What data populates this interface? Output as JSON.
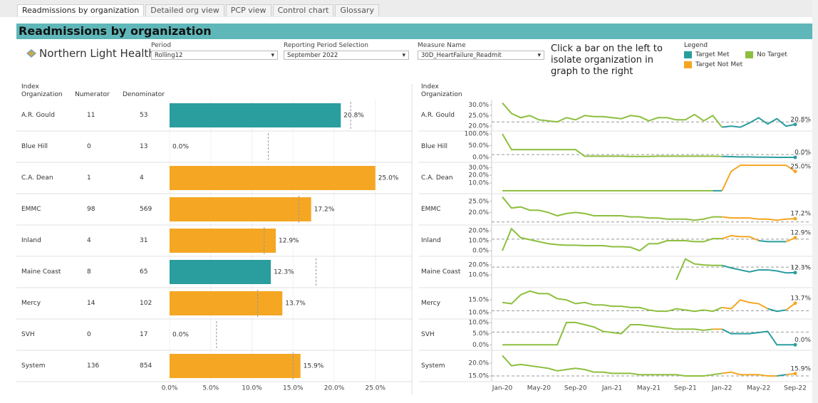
{
  "tabs": [
    "Readmissions by organization",
    "Detailed org view",
    "PCP view",
    "Control chart",
    "Glossary"
  ],
  "header": {
    "title": "Readmissions by organization"
  },
  "logo": "Northern Light Health.",
  "filters": [
    {
      "label": "Period",
      "value": "Rolling12"
    },
    {
      "label": "Reporting Period Selection",
      "value": "September 2022"
    },
    {
      "label": "Measure Name",
      "value": "30D_HeartFailure_Readmit"
    }
  ],
  "instruction": "Click a bar on the left to isolate organization in graph to the right",
  "legend": {
    "title": "Legend",
    "items": [
      {
        "label": "Target Met",
        "color": "#2a9d9f"
      },
      {
        "label": "No Target",
        "color": "#8dbf3f"
      },
      {
        "label": "Target Not Met",
        "color": "#f5a623"
      }
    ]
  },
  "table": {
    "columns": [
      "Index Organization",
      "Numerator",
      "Denominator"
    ]
  },
  "chart_data": [
    {
      "type": "bar",
      "orientation": "horizontal",
      "categories": [
        "A.R. Gould",
        "Blue Hill",
        "C.A. Dean",
        "EMMC",
        "Inland",
        "Maine Coast",
        "Mercy",
        "SVH",
        "System"
      ],
      "numerator": [
        11,
        0,
        1,
        98,
        4,
        8,
        14,
        0,
        136
      ],
      "denominator": [
        53,
        13,
        4,
        569,
        31,
        65,
        102,
        17,
        854
      ],
      "values": [
        20.8,
        0,
        25,
        17.2,
        12.9,
        12.3,
        13.7,
        0,
        15.9
      ],
      "value_labels": [
        "20.8%",
        "0.0%",
        "25.0%",
        "17.2%",
        "12.9%",
        "12.3%",
        "13.7%",
        "0.0%",
        "15.9%"
      ],
      "colors": [
        "#2a9d9f",
        "#2a9d9f",
        "#f5a623",
        "#f5a623",
        "#f5a623",
        "#2a9d9f",
        "#f5a623",
        "#2a9d9f",
        "#f5a623"
      ],
      "targets": [
        22.0,
        12.0,
        null,
        15.7,
        11.5,
        17.8,
        10.7,
        5.7,
        15.0
      ],
      "xlim": [
        0,
        29
      ],
      "xticks": [
        {
          "value": 0,
          "label": "0.0%"
        },
        {
          "value": 5,
          "label": "5.0%"
        },
        {
          "value": 10,
          "label": "10.0%"
        },
        {
          "value": 15,
          "label": "15.0%"
        },
        {
          "value": 20,
          "label": "20.0%"
        },
        {
          "value": 25,
          "label": "25.0%"
        }
      ],
      "grid": true
    },
    {
      "type": "line",
      "xlim": [
        0,
        32
      ],
      "xticks": [
        {
          "value": 0,
          "label": "Jan-20"
        },
        {
          "value": 4,
          "label": "May-20"
        },
        {
          "value": 8,
          "label": "Sep-20"
        },
        {
          "value": 12,
          "label": "Jan-21"
        },
        {
          "value": 16,
          "label": "May-21"
        },
        {
          "value": 20,
          "label": "Sep-21"
        },
        {
          "value": 24,
          "label": "Jan-22"
        },
        {
          "value": 28,
          "label": "May-22"
        },
        {
          "value": 32,
          "label": "Sep-22"
        }
      ],
      "panels": [
        {
          "ylim": [
            18.7,
            31.5
          ],
          "yticks": [
            {
              "value": 20,
              "label": "20.0%"
            },
            {
              "value": 25,
              "label": "25.0%"
            },
            {
              "value": 30,
              "label": "30.0%"
            }
          ],
          "values": [
            31,
            26,
            24,
            25,
            23,
            22.5,
            22,
            24,
            23,
            25,
            24.5,
            24.5,
            24,
            23.5,
            25,
            24.5,
            22.5,
            24,
            24,
            23,
            23,
            25.5,
            22.5,
            25,
            19.5,
            20,
            19.5,
            21.5,
            24,
            21,
            23.5,
            20,
            20.8
          ],
          "point_colors": [
            "#8dbf3f",
            "#8dbf3f",
            "#8dbf3f",
            "#8dbf3f",
            "#8dbf3f",
            "#8dbf3f",
            "#8dbf3f",
            "#8dbf3f",
            "#8dbf3f",
            "#8dbf3f",
            "#8dbf3f",
            "#8dbf3f",
            "#8dbf3f",
            "#8dbf3f",
            "#8dbf3f",
            "#8dbf3f",
            "#8dbf3f",
            "#8dbf3f",
            "#8dbf3f",
            "#8dbf3f",
            "#8dbf3f",
            "#8dbf3f",
            "#8dbf3f",
            "#8dbf3f",
            "#8dbf3f",
            "#2a9d9f",
            "#2a9d9f",
            "#2a9d9f",
            "#2a9d9f",
            "#2a9d9f",
            "#2a9d9f",
            "#2a9d9f",
            "#2a9d9f"
          ]
        },
        {
          "ylim": [
            -12,
            103
          ],
          "yticks": [
            {
              "value": 0,
              "label": "0.0%"
            },
            {
              "value": 50,
              "label": "50.0%"
            },
            {
              "value": 100,
              "label": "100.0%"
            }
          ],
          "values": [
            100,
            33,
            33,
            33,
            33,
            33,
            33,
            33,
            33,
            5,
            5,
            5,
            5,
            5,
            4,
            4,
            4,
            5,
            5,
            5,
            5,
            5,
            5,
            5,
            4,
            3,
            2,
            2,
            1,
            1,
            0,
            0,
            0
          ],
          "point_colors": [
            "#8dbf3f",
            "#8dbf3f",
            "#8dbf3f",
            "#8dbf3f",
            "#8dbf3f",
            "#8dbf3f",
            "#8dbf3f",
            "#8dbf3f",
            "#8dbf3f",
            "#8dbf3f",
            "#8dbf3f",
            "#8dbf3f",
            "#8dbf3f",
            "#8dbf3f",
            "#8dbf3f",
            "#8dbf3f",
            "#8dbf3f",
            "#8dbf3f",
            "#8dbf3f",
            "#8dbf3f",
            "#8dbf3f",
            "#8dbf3f",
            "#8dbf3f",
            "#8dbf3f",
            "#8dbf3f",
            "#2a9d9f",
            "#2a9d9f",
            "#2a9d9f",
            "#2a9d9f",
            "#2a9d9f",
            "#2a9d9f",
            "#2a9d9f",
            "#2a9d9f"
          ]
        },
        {
          "ylim": [
            -1,
            34
          ],
          "yticks": [
            {
              "value": 10,
              "label": "10.0%"
            },
            {
              "value": 20,
              "label": "20.0%"
            },
            {
              "value": 30,
              "label": "30.0%"
            }
          ],
          "values": [
            0,
            0,
            0,
            0,
            0,
            0,
            0,
            0,
            0,
            0,
            0,
            0,
            0,
            0,
            0,
            0,
            0,
            0,
            0,
            0,
            0,
            0,
            0,
            0,
            0,
            25,
            33,
            33,
            33,
            33,
            33,
            33,
            25
          ],
          "point_colors": [
            "#8dbf3f",
            "#8dbf3f",
            "#8dbf3f",
            "#8dbf3f",
            "#8dbf3f",
            "#8dbf3f",
            "#8dbf3f",
            "#8dbf3f",
            "#8dbf3f",
            "#8dbf3f",
            "#8dbf3f",
            "#8dbf3f",
            "#8dbf3f",
            "#8dbf3f",
            "#8dbf3f",
            "#8dbf3f",
            "#8dbf3f",
            "#8dbf3f",
            "#8dbf3f",
            "#8dbf3f",
            "#8dbf3f",
            "#8dbf3f",
            "#8dbf3f",
            "#8dbf3f",
            "#2a9d9f",
            "#f5a623",
            "#f5a623",
            "#f5a623",
            "#f5a623",
            "#f5a623",
            "#f5a623",
            "#f5a623",
            "#f5a623"
          ]
        },
        {
          "ylim": [
            15.3,
            27.5
          ],
          "yticks": [
            {
              "value": 20,
              "label": "20.0%"
            },
            {
              "value": 25,
              "label": "25.0%"
            }
          ],
          "values": [
            27,
            22,
            22.5,
            21,
            21,
            20,
            18.5,
            19.5,
            20,
            19.5,
            18.5,
            18.5,
            18.5,
            18.5,
            18,
            18,
            17.5,
            17.5,
            17,
            17,
            17,
            16.5,
            17,
            18,
            18,
            17.5,
            17.5,
            17.5,
            17,
            17,
            16.5,
            17,
            17.2
          ],
          "point_colors": [
            "#8dbf3f",
            "#8dbf3f",
            "#8dbf3f",
            "#8dbf3f",
            "#8dbf3f",
            "#8dbf3f",
            "#8dbf3f",
            "#8dbf3f",
            "#8dbf3f",
            "#8dbf3f",
            "#8dbf3f",
            "#8dbf3f",
            "#8dbf3f",
            "#8dbf3f",
            "#8dbf3f",
            "#8dbf3f",
            "#8dbf3f",
            "#8dbf3f",
            "#8dbf3f",
            "#8dbf3f",
            "#8dbf3f",
            "#8dbf3f",
            "#8dbf3f",
            "#8dbf3f",
            "#8dbf3f",
            "#f5a623",
            "#f5a623",
            "#f5a623",
            "#f5a623",
            "#f5a623",
            "#f5a623",
            "#f5a623",
            "#f5a623"
          ]
        },
        {
          "ylim": [
            -3.5,
            23.5
          ],
          "yticks": [
            {
              "value": 0,
              "label": "0.0%"
            },
            {
              "value": 10,
              "label": "10.0%"
            },
            {
              "value": 20,
              "label": "20.0%"
            }
          ],
          "values": [
            0,
            22,
            13,
            11,
            9,
            7,
            6,
            5.5,
            5.5,
            5,
            5,
            5,
            4,
            4,
            3.5,
            0,
            7,
            7,
            10,
            10,
            10,
            9,
            9,
            12,
            12,
            15,
            14,
            14,
            10,
            9,
            9,
            9,
            12.9
          ],
          "point_colors": [
            "#8dbf3f",
            "#8dbf3f",
            "#8dbf3f",
            "#8dbf3f",
            "#8dbf3f",
            "#8dbf3f",
            "#8dbf3f",
            "#8dbf3f",
            "#8dbf3f",
            "#8dbf3f",
            "#8dbf3f",
            "#8dbf3f",
            "#8dbf3f",
            "#8dbf3f",
            "#8dbf3f",
            "#8dbf3f",
            "#8dbf3f",
            "#8dbf3f",
            "#8dbf3f",
            "#8dbf3f",
            "#8dbf3f",
            "#8dbf3f",
            "#8dbf3f",
            "#8dbf3f",
            "#8dbf3f",
            "#f5a623",
            "#f5a623",
            "#f5a623",
            "#f5a623",
            "#2a9d9f",
            "#2a9d9f",
            "#2a9d9f",
            "#f5a623"
          ]
        },
        {
          "ylim": [
            -0.7,
            26.5
          ],
          "yticks": [
            {
              "value": 10,
              "label": "10.0%"
            },
            {
              "value": 20,
              "label": "20.0%"
            }
          ],
          "values": [
            null,
            null,
            null,
            null,
            null,
            null,
            null,
            null,
            null,
            null,
            null,
            null,
            null,
            null,
            null,
            null,
            null,
            null,
            null,
            5,
            26,
            21,
            20,
            19.5,
            19.5,
            17,
            15,
            13,
            15,
            15,
            14,
            12,
            12.3
          ],
          "point_colors": [
            "#8dbf3f",
            "#8dbf3f",
            "#8dbf3f",
            "#8dbf3f",
            "#8dbf3f",
            "#8dbf3f",
            "#8dbf3f",
            "#8dbf3f",
            "#8dbf3f",
            "#8dbf3f",
            "#8dbf3f",
            "#8dbf3f",
            "#8dbf3f",
            "#8dbf3f",
            "#8dbf3f",
            "#8dbf3f",
            "#8dbf3f",
            "#8dbf3f",
            "#8dbf3f",
            "#8dbf3f",
            "#8dbf3f",
            "#8dbf3f",
            "#8dbf3f",
            "#8dbf3f",
            "#8dbf3f",
            "#2a9d9f",
            "#2a9d9f",
            "#2a9d9f",
            "#2a9d9f",
            "#2a9d9f",
            "#2a9d9f",
            "#2a9d9f",
            "#2a9d9f"
          ]
        },
        {
          "ylim": [
            8.3,
            19
          ],
          "yticks": [
            {
              "value": 10,
              "label": "10.0%"
            },
            {
              "value": 15,
              "label": "15.0%"
            }
          ],
          "values": [
            14,
            13.5,
            17,
            18.5,
            17.5,
            17.5,
            15.5,
            15,
            13.5,
            14,
            13,
            13,
            12.5,
            12.5,
            12,
            12,
            11,
            10.5,
            10.5,
            11.5,
            11,
            10.5,
            11,
            10.5,
            12,
            11.5,
            15,
            14,
            13.5,
            11.5,
            10.5,
            11,
            13.7
          ],
          "point_colors": [
            "#8dbf3f",
            "#8dbf3f",
            "#8dbf3f",
            "#8dbf3f",
            "#8dbf3f",
            "#8dbf3f",
            "#8dbf3f",
            "#8dbf3f",
            "#8dbf3f",
            "#8dbf3f",
            "#8dbf3f",
            "#8dbf3f",
            "#8dbf3f",
            "#8dbf3f",
            "#8dbf3f",
            "#8dbf3f",
            "#8dbf3f",
            "#8dbf3f",
            "#8dbf3f",
            "#8dbf3f",
            "#8dbf3f",
            "#8dbf3f",
            "#8dbf3f",
            "#8dbf3f",
            "#8dbf3f",
            "#f5a623",
            "#f5a623",
            "#f5a623",
            "#f5a623",
            "#f5a623",
            "#2a9d9f",
            "#2a9d9f",
            "#f5a623"
          ]
        },
        {
          "ylim": [
            -1.5,
            10.6
          ],
          "yticks": [
            {
              "value": 0,
              "label": "0.0%"
            },
            {
              "value": 5,
              "label": "5.0%"
            },
            {
              "value": 10,
              "label": "10.0%"
            }
          ],
          "values": [
            0,
            0,
            0,
            0,
            0,
            0,
            0,
            10,
            10,
            9,
            8,
            6,
            5.5,
            5,
            9,
            9,
            8.5,
            8,
            7.5,
            7,
            7,
            7,
            6.5,
            7,
            7,
            5,
            5,
            5,
            5.5,
            6,
            0,
            0,
            0
          ],
          "point_colors": [
            "#8dbf3f",
            "#8dbf3f",
            "#8dbf3f",
            "#8dbf3f",
            "#8dbf3f",
            "#8dbf3f",
            "#8dbf3f",
            "#8dbf3f",
            "#8dbf3f",
            "#8dbf3f",
            "#8dbf3f",
            "#8dbf3f",
            "#8dbf3f",
            "#8dbf3f",
            "#8dbf3f",
            "#8dbf3f",
            "#8dbf3f",
            "#8dbf3f",
            "#8dbf3f",
            "#8dbf3f",
            "#8dbf3f",
            "#8dbf3f",
            "#8dbf3f",
            "#8dbf3f",
            "#f5a623",
            "#2a9d9f",
            "#2a9d9f",
            "#2a9d9f",
            "#2a9d9f",
            "#2a9d9f",
            "#2a9d9f",
            "#2a9d9f",
            "#2a9d9f"
          ]
        },
        {
          "ylim": [
            13.6,
            24.2
          ],
          "yticks": [
            {
              "value": 15,
              "label": "15.0%"
            },
            {
              "value": 20,
              "label": "20.0%"
            }
          ],
          "values": [
            23,
            19,
            19.5,
            19,
            18.5,
            18,
            17,
            17.5,
            18,
            17.5,
            16.5,
            16.5,
            16,
            16,
            16,
            15.5,
            15.5,
            15.5,
            15.5,
            15.5,
            15,
            15,
            15,
            15.5,
            16,
            16.5,
            15.5,
            15.5,
            15.5,
            15,
            15,
            15.5,
            15.9
          ],
          "point_colors": [
            "#8dbf3f",
            "#8dbf3f",
            "#8dbf3f",
            "#8dbf3f",
            "#8dbf3f",
            "#8dbf3f",
            "#8dbf3f",
            "#8dbf3f",
            "#8dbf3f",
            "#8dbf3f",
            "#8dbf3f",
            "#8dbf3f",
            "#8dbf3f",
            "#8dbf3f",
            "#8dbf3f",
            "#8dbf3f",
            "#8dbf3f",
            "#8dbf3f",
            "#8dbf3f",
            "#8dbf3f",
            "#8dbf3f",
            "#8dbf3f",
            "#8dbf3f",
            "#8dbf3f",
            "#8dbf3f",
            "#f5a623",
            "#f5a623",
            "#f5a623",
            "#f5a623",
            "#f5a623",
            "#f5a623",
            "#2a9d9f",
            "#f5a623"
          ]
        }
      ]
    }
  ]
}
